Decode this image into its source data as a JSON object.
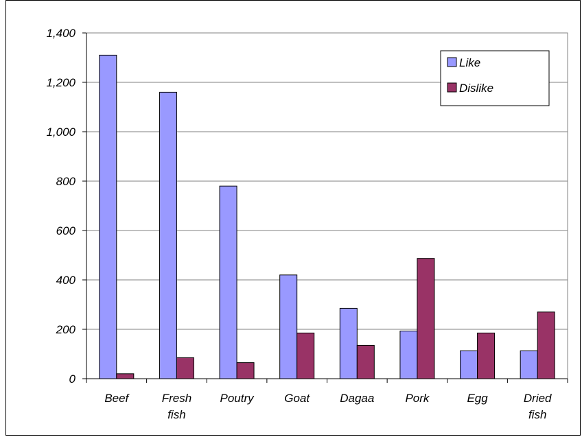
{
  "chart_data": {
    "type": "bar",
    "title": "",
    "xlabel": "",
    "ylabel": "",
    "categories": [
      "Beef",
      "Fresh fish",
      "Poutry",
      "Goat",
      "Dagaa",
      "Pork",
      "Egg",
      "Dried fish"
    ],
    "series": [
      {
        "name": "Like",
        "color": "#9999ff",
        "values": [
          1310,
          1160,
          780,
          420,
          285,
          193,
          113,
          113
        ]
      },
      {
        "name": "Dislike",
        "color": "#993366",
        "values": [
          20,
          85,
          65,
          185,
          135,
          487,
          185,
          270
        ]
      }
    ],
    "ylim": [
      0,
      1400
    ],
    "yticks": [
      0,
      200,
      400,
      600,
      800,
      1000,
      1200,
      1400
    ],
    "ytick_labels": [
      "0",
      "200",
      "400",
      "600",
      "800",
      "1,000",
      "1,200",
      "1,400"
    ],
    "grid": true,
    "legend_position": "top-right"
  }
}
